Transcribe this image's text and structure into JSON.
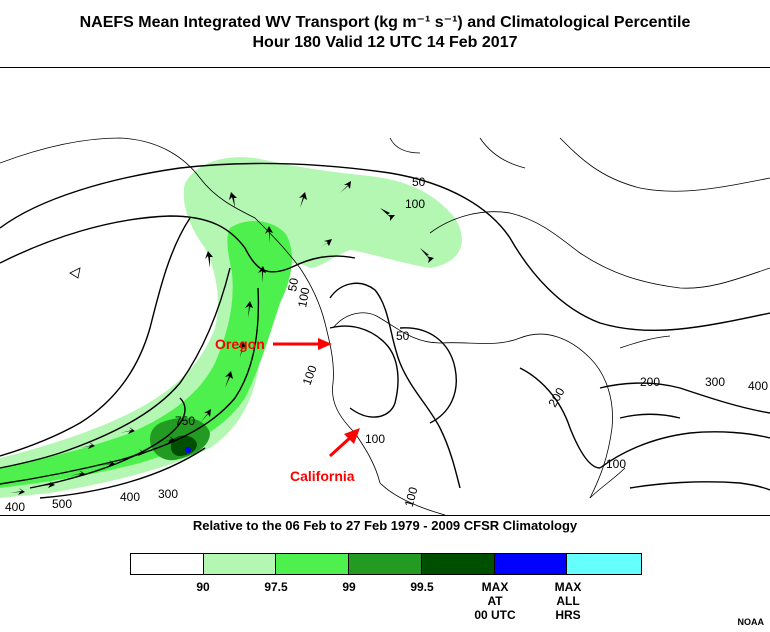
{
  "header": {
    "title_line1": "NAEFS Mean Integrated WV Transport (kg m⁻¹ s⁻¹) and Climatological Percentile",
    "title_line2": "Hour 180 Valid 12 UTC 14 Feb 2017"
  },
  "map": {
    "contour_labels": [
      "50",
      "100",
      "50",
      "100",
      "750",
      "400",
      "300",
      "500",
      "400",
      "100",
      "200",
      "200",
      "300",
      "400",
      "100",
      "100",
      "100",
      "50"
    ],
    "annotations": {
      "oregon": "Oregon",
      "california": "California"
    },
    "annotation_color": "#ff0000"
  },
  "subtitle": "Relative to the 06 Feb to 27 Feb 1979 - 2009 CFSR Climatology",
  "legend": {
    "colors": [
      "#ffffff",
      "#b3f7b3",
      "#4ef04e",
      "#239b23",
      "#004f00",
      "#0000ff",
      "#66ffff"
    ],
    "labels": [
      {
        "text": "90"
      },
      {
        "text": "97.5"
      },
      {
        "text": "99"
      },
      {
        "text": "99.5"
      },
      {
        "text": "MAX\nAT\n00 UTC"
      },
      {
        "text": "MAX\nALL\nHRS"
      }
    ]
  },
  "credit": "NOAA"
}
